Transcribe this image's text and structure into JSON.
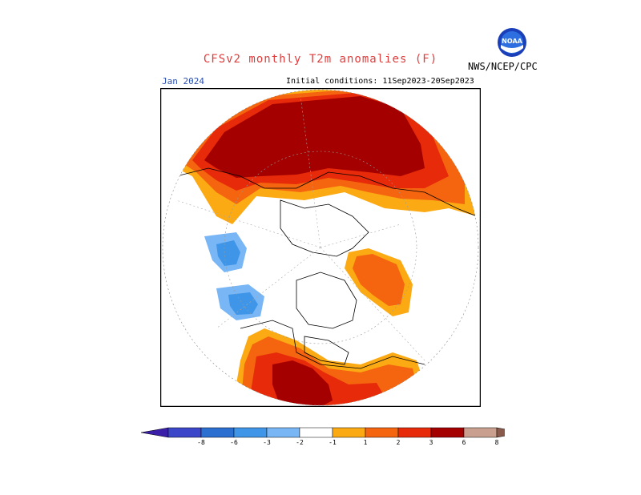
{
  "header": {
    "title": "CFSv2 monthly T2m anomalies (F)",
    "agency": "NWS/NCEP/CPC",
    "logo_text": "NOAA",
    "month": "Jan 2024",
    "initial_conditions": "Initial conditions: 11Sep2023-20Sep2023"
  },
  "colorbar": {
    "boxes": [
      {
        "color": "#3c1fa8"
      },
      {
        "color": "#3b46c8"
      },
      {
        "color": "#2b6fd1"
      },
      {
        "color": "#3f95e8"
      },
      {
        "color": "#79b6f5"
      },
      {
        "color": "#ffffff"
      },
      {
        "color": "#fbaa14"
      },
      {
        "color": "#f5650f"
      },
      {
        "color": "#e62a0a"
      },
      {
        "color": "#a40000"
      },
      {
        "color": "#c9a08f"
      },
      {
        "color": "#8a5a4d"
      }
    ],
    "labels": [
      "-8",
      "-6",
      "-3",
      "-2",
      "-1",
      "1",
      "2",
      "3",
      "6",
      "8"
    ]
  },
  "colors": {
    "warm_1": "#fbaa14",
    "warm_2": "#f5650f",
    "warm_3": "#e62a0a",
    "warm_4": "#a40000",
    "cool_1": "#79b6f5",
    "cool_2": "#3f95e8"
  }
}
